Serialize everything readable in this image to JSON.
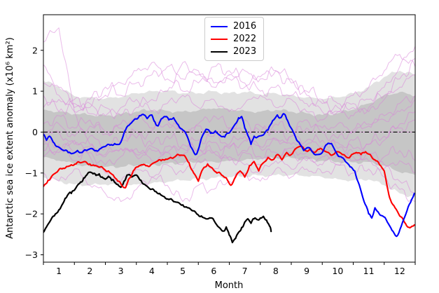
{
  "chart_data": {
    "type": "line",
    "xlabel": "Month",
    "ylabel": "Antarctic sea ice extent anomaly (x10⁶ km²)",
    "xlim": [
      1,
      13
    ],
    "ylim": [
      -3.18,
      2.87
    ],
    "grid": false,
    "x_tick_labels": [
      "1",
      "2",
      "3",
      "4",
      "5",
      "6",
      "7",
      "8",
      "9",
      "10",
      "11",
      "12"
    ],
    "x_tick_months": [
      1,
      2,
      3,
      4,
      5,
      6,
      7,
      8,
      9,
      10,
      11,
      12
    ],
    "x_month_boundaries": [
      1,
      2,
      3,
      4,
      5,
      6,
      7,
      8,
      9,
      10,
      11,
      12,
      13
    ],
    "y_ticks": [
      2,
      1,
      0,
      -1,
      -2,
      -3
    ],
    "y_tick_labels": [
      "2",
      "1",
      "0",
      "−1",
      "−2",
      "−3"
    ],
    "zero_line": {
      "value": 0,
      "style": "dash-dot",
      "color": "#000000",
      "underlay_color": "#dd8add"
    },
    "legend": [
      {
        "label": "2016",
        "color": "#0000ff"
      },
      {
        "label": "2022",
        "color": "#ff0000"
      },
      {
        "label": "2023",
        "color": "#000000"
      }
    ],
    "series": [
      {
        "name": "2016",
        "color": "#0000ff",
        "width": 2.1,
        "x": [
          1.0,
          1.1,
          1.2,
          1.35,
          1.5,
          1.65,
          1.8,
          1.95,
          2.1,
          2.25,
          2.4,
          2.55,
          2.7,
          2.85,
          3.0,
          3.15,
          3.3,
          3.45,
          3.55,
          3.65,
          3.8,
          3.95,
          4.1,
          4.25,
          4.35,
          4.5,
          4.6,
          4.7,
          4.8,
          4.9,
          5.05,
          5.2,
          5.35,
          5.5,
          5.65,
          5.75,
          5.9,
          6.0,
          6.1,
          6.25,
          6.4,
          6.55,
          6.7,
          6.85,
          7.0,
          7.15,
          7.3,
          7.4,
          7.5,
          7.6,
          7.7,
          7.8,
          7.95,
          8.1,
          8.25,
          8.4,
          8.55,
          8.65,
          8.75,
          8.85,
          8.95,
          9.1,
          9.25,
          9.4,
          9.55,
          9.7,
          9.85,
          10.0,
          10.15,
          10.3,
          10.45,
          10.6,
          10.75,
          10.9,
          11.05,
          11.2,
          11.35,
          11.5,
          11.6,
          11.7,
          11.8,
          11.95,
          12.1,
          12.25,
          12.4,
          12.55,
          12.7,
          12.85,
          12.97
        ],
        "y": [
          -0.05,
          -0.2,
          -0.1,
          -0.27,
          -0.37,
          -0.45,
          -0.5,
          -0.52,
          -0.45,
          -0.5,
          -0.45,
          -0.4,
          -0.45,
          -0.4,
          -0.35,
          -0.32,
          -0.28,
          -0.3,
          -0.15,
          0.05,
          0.2,
          0.32,
          0.4,
          0.42,
          0.33,
          0.42,
          0.25,
          0.15,
          0.32,
          0.38,
          0.3,
          0.35,
          0.18,
          0.05,
          -0.12,
          -0.35,
          -0.55,
          -0.42,
          -0.15,
          0.07,
          -0.03,
          0.03,
          -0.08,
          -0.12,
          -0.02,
          0.15,
          0.35,
          0.38,
          0.1,
          -0.08,
          -0.3,
          -0.1,
          -0.1,
          -0.07,
          0.05,
          0.28,
          0.42,
          0.35,
          0.45,
          0.32,
          0.15,
          -0.05,
          -0.25,
          -0.45,
          -0.38,
          -0.5,
          -0.55,
          -0.5,
          -0.3,
          -0.28,
          -0.5,
          -0.6,
          -0.72,
          -0.85,
          -0.95,
          -1.3,
          -1.7,
          -2.0,
          -2.1,
          -1.85,
          -1.95,
          -2.05,
          -2.2,
          -2.4,
          -2.55,
          -2.3,
          -2.0,
          -1.72,
          -1.5
        ]
      },
      {
        "name": "2022",
        "color": "#ff0000",
        "width": 2.1,
        "x": [
          1.0,
          1.15,
          1.3,
          1.45,
          1.6,
          1.75,
          1.9,
          2.05,
          2.2,
          2.35,
          2.5,
          2.65,
          2.8,
          2.95,
          3.1,
          3.25,
          3.4,
          3.55,
          3.65,
          3.75,
          3.9,
          4.05,
          4.2,
          4.35,
          4.5,
          4.65,
          4.8,
          4.95,
          5.1,
          5.25,
          5.4,
          5.55,
          5.7,
          5.85,
          6.0,
          6.15,
          6.3,
          6.45,
          6.6,
          6.75,
          6.9,
          7.05,
          7.2,
          7.35,
          7.5,
          7.65,
          7.8,
          7.95,
          8.1,
          8.25,
          8.4,
          8.55,
          8.7,
          8.85,
          9.0,
          9.15,
          9.3,
          9.45,
          9.6,
          9.75,
          9.9,
          10.05,
          10.2,
          10.35,
          10.5,
          10.65,
          10.8,
          10.95,
          11.1,
          11.25,
          11.4,
          11.55,
          11.7,
          11.85,
          12.0,
          12.1,
          12.2,
          12.35,
          12.5,
          12.65,
          12.8,
          12.9,
          12.97
        ],
        "y": [
          -1.33,
          -1.18,
          -1.05,
          -0.97,
          -0.9,
          -0.84,
          -0.8,
          -0.78,
          -0.75,
          -0.72,
          -0.78,
          -0.82,
          -0.86,
          -0.9,
          -0.95,
          -1.05,
          -1.2,
          -1.33,
          -1.36,
          -1.15,
          -0.95,
          -0.85,
          -0.8,
          -0.82,
          -0.78,
          -0.72,
          -0.7,
          -0.66,
          -0.62,
          -0.6,
          -0.57,
          -0.57,
          -0.75,
          -1.0,
          -1.2,
          -0.9,
          -0.78,
          -0.88,
          -1.0,
          -1.05,
          -1.12,
          -1.3,
          -1.1,
          -0.95,
          -1.1,
          -0.82,
          -0.72,
          -0.95,
          -0.75,
          -0.62,
          -0.68,
          -0.55,
          -0.68,
          -0.5,
          -0.55,
          -0.4,
          -0.35,
          -0.45,
          -0.42,
          -0.5,
          -0.42,
          -0.45,
          -0.5,
          -0.55,
          -0.48,
          -0.55,
          -0.62,
          -0.55,
          -0.5,
          -0.55,
          -0.48,
          -0.55,
          -0.68,
          -0.8,
          -0.95,
          -1.35,
          -1.65,
          -1.85,
          -2.05,
          -2.2,
          -2.33,
          -2.3,
          -2.27
        ]
      },
      {
        "name": "2023",
        "color": "#000000",
        "width": 2.2,
        "x": [
          1.0,
          1.1,
          1.2,
          1.35,
          1.5,
          1.6,
          1.7,
          1.8,
          1.9,
          2.0,
          2.1,
          2.2,
          2.3,
          2.4,
          2.5,
          2.6,
          2.7,
          2.8,
          2.9,
          3.0,
          3.1,
          3.2,
          3.3,
          3.4,
          3.5,
          3.6,
          3.7,
          3.85,
          4.0,
          4.15,
          4.3,
          4.45,
          4.6,
          4.75,
          4.9,
          5.05,
          5.2,
          5.35,
          5.5,
          5.65,
          5.8,
          5.95,
          6.1,
          6.25,
          6.4,
          6.55,
          6.7,
          6.8,
          6.9,
          7.0,
          7.1,
          7.2,
          7.3,
          7.4,
          7.5,
          7.6,
          7.7,
          7.8,
          7.9,
          8.0,
          8.1,
          8.2,
          8.3,
          8.35
        ],
        "y": [
          -2.45,
          -2.32,
          -2.2,
          -2.05,
          -1.9,
          -1.78,
          -1.62,
          -1.52,
          -1.5,
          -1.42,
          -1.3,
          -1.22,
          -1.12,
          -1.05,
          -0.98,
          -1.02,
          -1.06,
          -1.02,
          -1.1,
          -1.15,
          -1.08,
          -1.18,
          -1.23,
          -1.28,
          -1.35,
          -1.2,
          -1.05,
          -1.1,
          -1.05,
          -1.18,
          -1.3,
          -1.4,
          -1.45,
          -1.5,
          -1.58,
          -1.65,
          -1.7,
          -1.72,
          -1.78,
          -1.85,
          -1.92,
          -2.0,
          -2.05,
          -2.12,
          -2.1,
          -2.22,
          -2.35,
          -2.42,
          -2.32,
          -2.52,
          -2.7,
          -2.6,
          -2.45,
          -2.33,
          -2.2,
          -2.12,
          -2.23,
          -2.12,
          -2.14,
          -2.1,
          -2.06,
          -2.15,
          -2.3,
          -2.43
        ]
      }
    ],
    "bands": {
      "x_start": 1,
      "x_step": 0.5,
      "outer": {
        "color": "#e2e2e2",
        "upper": [
          1.25,
          1.1,
          0.88,
          0.85,
          0.82,
          0.85,
          0.95,
          1.0,
          1.02,
          0.95,
          0.95,
          1.0,
          0.95,
          0.98,
          0.92,
          0.95,
          0.9,
          0.85,
          0.8,
          0.85,
          0.95,
          1.1,
          1.35,
          1.5,
          1.4
        ],
        "lower": [
          -1.1,
          -1.2,
          -1.28,
          -1.3,
          -1.28,
          -1.3,
          -1.28,
          -1.25,
          -1.22,
          -1.18,
          -1.15,
          -1.12,
          -1.1,
          -1.08,
          -1.06,
          -1.05,
          -1.05,
          -1.08,
          -1.1,
          -1.15,
          -1.18,
          -1.16,
          -1.3,
          -1.5,
          -1.58
        ]
      },
      "inner": {
        "color": "#c6c6c6",
        "upper": [
          0.55,
          0.5,
          0.44,
          0.42,
          0.4,
          0.44,
          0.5,
          0.54,
          0.52,
          0.5,
          0.53,
          0.58,
          0.55,
          0.52,
          0.5,
          0.54,
          0.5,
          0.46,
          0.42,
          0.46,
          0.55,
          0.7,
          0.9,
          0.98,
          0.88
        ],
        "lower": [
          -0.62,
          -0.7,
          -0.78,
          -0.84,
          -0.85,
          -0.85,
          -0.82,
          -0.8,
          -0.77,
          -0.75,
          -0.74,
          -0.73,
          -0.7,
          -0.68,
          -0.66,
          -0.64,
          -0.63,
          -0.66,
          -0.7,
          -0.73,
          -0.74,
          -0.73,
          -0.82,
          -0.98,
          -1.05
        ]
      }
    },
    "background_years": {
      "color": "#d884d8",
      "opacity": 0.55,
      "x_start": 1,
      "x_step": 0.5,
      "lines": [
        [
          2.2,
          2.55,
          0.5,
          -0.3,
          -0.6,
          -0.4,
          -0.55,
          -0.35,
          -0.5,
          -0.3,
          -0.45,
          -0.25,
          -0.4,
          -0.2,
          -0.35,
          -0.15,
          -0.3,
          -0.2,
          -0.35,
          -0.25,
          -0.4,
          -0.3,
          -0.2,
          0.2,
          0.5
        ],
        [
          1.65,
          1.1,
          0.7,
          0.45,
          0.6,
          0.4,
          0.6,
          0.8,
          1.0,
          1.7,
          1.4,
          1.1,
          1.3,
          1.5,
          1.35,
          1.5,
          1.3,
          0.9,
          0.7,
          0.5,
          0.6,
          0.8,
          1.1,
          1.6,
          2.1
        ],
        [
          0.9,
          0.5,
          0.8,
          0.6,
          0.9,
          1.2,
          1.5,
          1.7,
          1.3,
          1.0,
          1.2,
          1.6,
          1.5,
          1.2,
          1.0,
          1.1,
          0.9,
          0.7,
          0.5,
          0.6,
          0.4,
          0.6,
          0.9,
          1.3,
          1.8
        ],
        [
          0.6,
          0.8,
          0.5,
          0.7,
          0.4,
          0.6,
          0.8,
          0.5,
          0.7,
          0.9,
          0.6,
          0.8,
          0.5,
          0.7,
          0.9,
          0.6,
          0.8,
          0.5,
          0.3,
          0.5,
          0.7,
          0.5,
          0.8,
          1.1,
          1.4
        ],
        [
          0.2,
          0.4,
          0.1,
          0.3,
          0.0,
          0.2,
          0.4,
          0.1,
          0.3,
          0.0,
          0.2,
          0.4,
          0.1,
          0.3,
          0.0,
          0.2,
          0.0,
          0.3,
          0.1,
          0.2,
          0.0,
          0.2,
          0.4,
          0.7,
          0.9
        ],
        [
          -0.2,
          0.0,
          -0.3,
          -0.1,
          -0.4,
          -0.2,
          0.0,
          -0.3,
          -0.1,
          -0.4,
          -0.2,
          0.0,
          -0.3,
          -0.1,
          -0.4,
          -0.2,
          -0.1,
          -0.3,
          -0.2,
          -0.4,
          -0.2,
          -0.3,
          -0.1,
          0.1,
          0.3
        ],
        [
          -0.6,
          -0.4,
          -0.7,
          -0.5,
          -0.8,
          -0.6,
          -0.4,
          -0.7,
          -0.5,
          -0.8,
          -0.6,
          -0.5,
          -0.7,
          -0.5,
          -0.8,
          -0.6,
          -0.5,
          -0.7,
          -0.6,
          -0.8,
          -0.6,
          -0.7,
          -0.9,
          -0.7,
          -1.0
        ],
        [
          -1.0,
          -1.2,
          -0.9,
          -1.3,
          -1.5,
          -1.7,
          -1.4,
          -1.1,
          -1.3,
          -1.7,
          -1.3,
          -1.4,
          -1.2,
          -1.0,
          -1.2,
          -0.9,
          -1.1,
          -0.9,
          -1.0,
          -0.8,
          -1.0,
          -0.9,
          -1.1,
          -1.4,
          -1.7
        ],
        [
          1.2,
          0.9,
          0.6,
          0.8,
          1.1,
          0.9,
          1.2,
          1.4,
          1.6,
          1.3,
          1.5,
          1.2,
          1.4,
          1.1,
          1.3,
          1.5,
          1.2,
          1.0,
          0.8,
          0.7,
          0.9,
          1.1,
          1.5,
          1.9,
          1.6
        ],
        [
          -0.3,
          -0.5,
          -0.2,
          -0.6,
          -1.0,
          -1.2,
          -0.9,
          -1.1,
          -0.8,
          -1.0,
          -0.7,
          -0.9,
          -0.6,
          -0.8,
          -1.0,
          -0.7,
          -0.9,
          -0.6,
          -0.8,
          -0.5,
          -0.7,
          -0.5,
          -0.8,
          -1.2,
          -1.5
        ],
        [
          0.0,
          0.2,
          -0.1,
          0.15,
          -0.05,
          0.1,
          -0.15,
          0.05,
          0.2,
          0.0,
          0.15,
          -0.1,
          0.1,
          -0.05,
          0.15,
          0.0,
          -0.1,
          0.1,
          0.0,
          -0.15,
          0.05,
          0.15,
          0.3,
          0.5,
          0.8
        ],
        [
          -0.45,
          -0.3,
          -0.5,
          -0.35,
          -0.55,
          -0.4,
          -0.6,
          -0.45,
          -0.35,
          -0.55,
          -0.4,
          -0.5,
          -0.35,
          -0.45,
          -0.6,
          -0.5,
          -0.4,
          -0.5,
          -0.45,
          -0.6,
          -0.5,
          -0.55,
          -0.6,
          -0.45,
          -0.7
        ]
      ]
    }
  }
}
